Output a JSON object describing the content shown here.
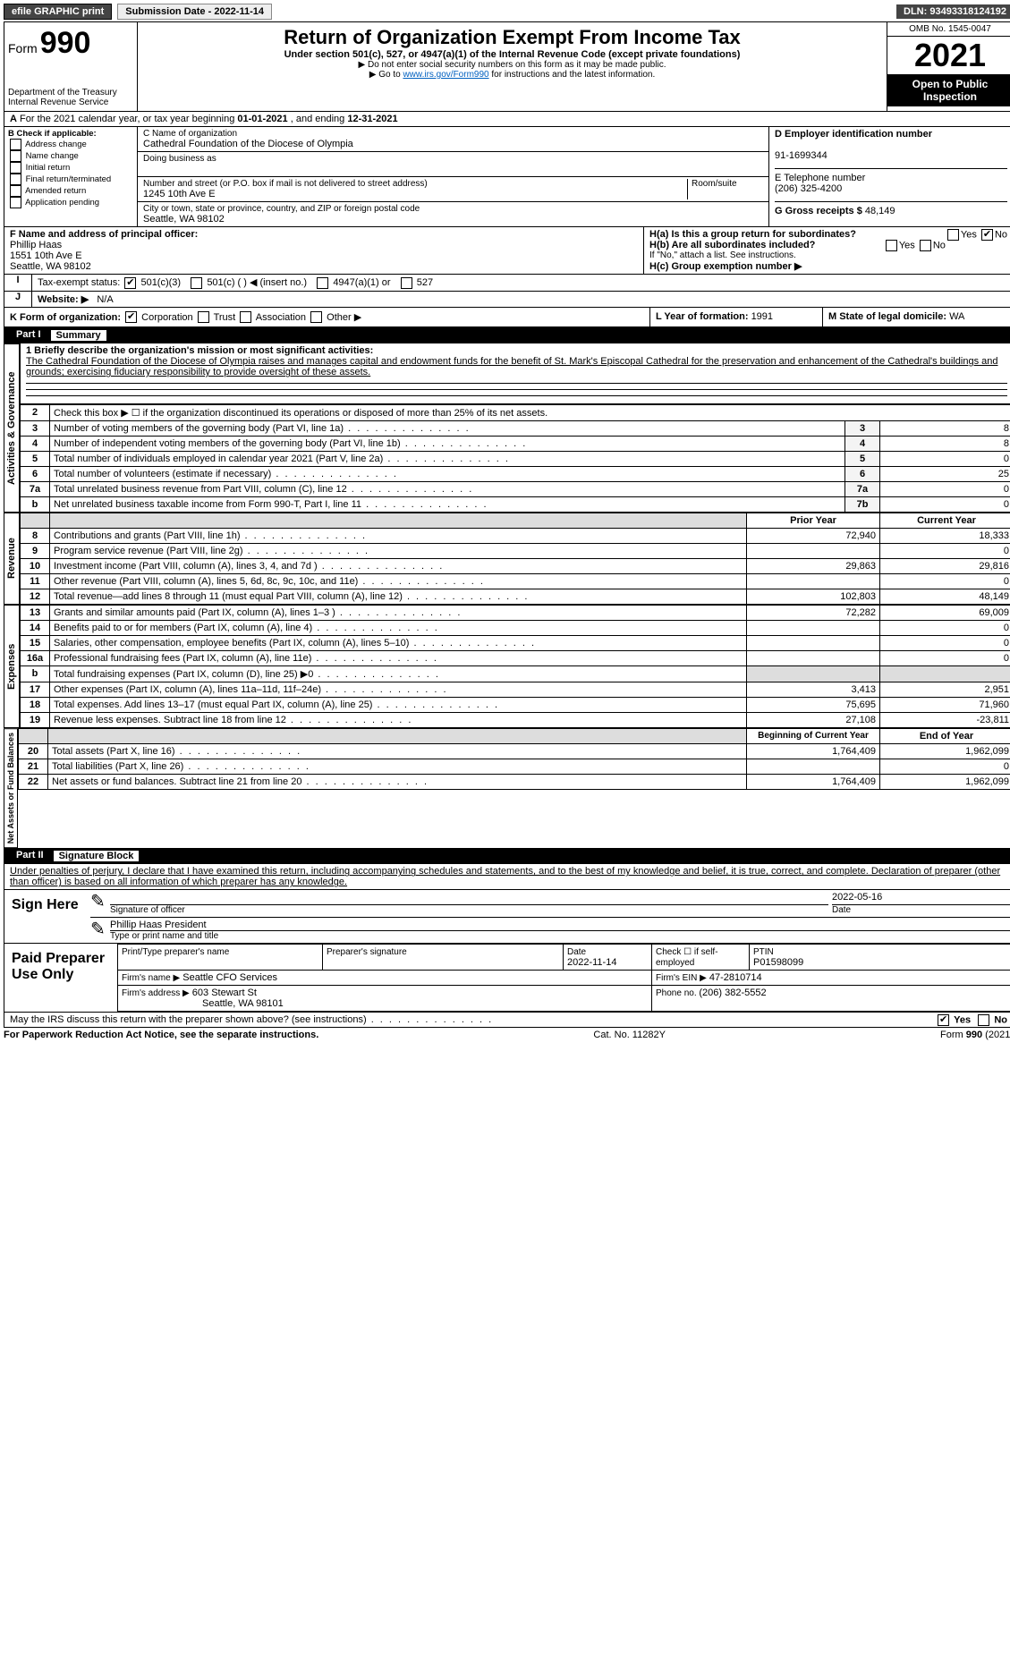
{
  "topbar": {
    "efile": "efile GRAPHIC print",
    "sub_label": "Submission Date - ",
    "sub_date": "2022-11-14",
    "dln_label": "DLN: ",
    "dln": "93493318124192"
  },
  "header": {
    "form_word": "Form",
    "form_num": "990",
    "dept1": "Department of the Treasury",
    "dept2": "Internal Revenue Service",
    "title": "Return of Organization Exempt From Income Tax",
    "sub1": "Under section 501(c), 527, or 4947(a)(1) of the Internal Revenue Code (except private foundations)",
    "sub2": "▶ Do not enter social security numbers on this form as it may be made public.",
    "sub3_pre": "▶ Go to ",
    "sub3_link": "www.irs.gov/Form990",
    "sub3_post": " for instructions and the latest information.",
    "omb": "OMB No. 1545-0047",
    "year": "2021",
    "otp": "Open to Public Inspection"
  },
  "periodA": {
    "text_pre": "For the 2021 calendar year, or tax year beginning ",
    "begin": "01-01-2021",
    "mid": " , and ending ",
    "end": "12-31-2021"
  },
  "boxB": {
    "label": "B Check if applicable:",
    "items": [
      "Address change",
      "Name change",
      "Initial return",
      "Final return/terminated",
      "Amended return",
      "Application pending"
    ]
  },
  "boxC": {
    "name_label": "C Name of organization",
    "name": "Cathedral Foundation of the Diocese of Olympia",
    "dba_label": "Doing business as",
    "addr_label": "Number and street (or P.O. box if mail is not delivered to street address)",
    "room_label": "Room/suite",
    "addr": "1245 10th Ave E",
    "city_label": "City or town, state or province, country, and ZIP or foreign postal code",
    "city": "Seattle, WA  98102"
  },
  "boxD": {
    "label": "D Employer identification number",
    "val": "91-1699344"
  },
  "boxE": {
    "label": "E Telephone number",
    "val": "(206) 325-4200"
  },
  "boxG": {
    "label": "G Gross receipts $ ",
    "val": "48,149"
  },
  "boxF": {
    "label": "F  Name and address of principal officer:",
    "name": "Phillip Haas",
    "addr": "1551 10th Ave E",
    "city": "Seattle, WA  98102"
  },
  "boxH": {
    "a": "H(a)  Is this a group return for subordinates?",
    "b": "H(b)  Are all subordinates included?",
    "b_note": "If \"No,\" attach a list. See instructions.",
    "c": "H(c)  Group exemption number ▶",
    "yes": "Yes",
    "no": "No"
  },
  "boxI": {
    "label": "Tax-exempt status:",
    "o1": "501(c)(3)",
    "o2": "501(c) (  ) ◀ (insert no.)",
    "o3": "4947(a)(1) or",
    "o4": "527"
  },
  "boxJ": {
    "label": "Website: ▶",
    "val": "N/A"
  },
  "boxK": {
    "label": "K Form of organization:",
    "o1": "Corporation",
    "o2": "Trust",
    "o3": "Association",
    "o4": "Other ▶"
  },
  "boxL": {
    "label": "L Year of formation: ",
    "val": "1991"
  },
  "boxM": {
    "label": "M State of legal domicile: ",
    "val": "WA"
  },
  "part1": {
    "num": "Part I",
    "title": "Summary"
  },
  "p1line1": {
    "label": "1 Briefly describe the organization's mission or most significant activities:",
    "text": "The Cathedral Foundation of the Diocese of Olympia raises and manages capital and endowment funds for the benefit of St. Mark's Episcopal Cathedral for the preservation and enhancement of the Cathedral's buildings and grounds; exercising fiduciary responsibility to provide oversight of these assets."
  },
  "gov_lines": [
    {
      "n": "2",
      "t": "Check this box ▶ ☐  if the organization discontinued its operations or disposed of more than 25% of its net assets.",
      "box": "",
      "v": ""
    },
    {
      "n": "3",
      "t": "Number of voting members of the governing body (Part VI, line 1a)",
      "box": "3",
      "v": "8"
    },
    {
      "n": "4",
      "t": "Number of independent voting members of the governing body (Part VI, line 1b)",
      "box": "4",
      "v": "8"
    },
    {
      "n": "5",
      "t": "Total number of individuals employed in calendar year 2021 (Part V, line 2a)",
      "box": "5",
      "v": "0"
    },
    {
      "n": "6",
      "t": "Total number of volunteers (estimate if necessary)",
      "box": "6",
      "v": "25"
    },
    {
      "n": "7a",
      "t": "Total unrelated business revenue from Part VIII, column (C), line 12",
      "box": "7a",
      "v": "0"
    },
    {
      "n": "b",
      "t": "Net unrelated business taxable income from Form 990-T, Part I, line 11",
      "box": "7b",
      "v": "0"
    }
  ],
  "col_hdr": {
    "prior": "Prior Year",
    "current": "Current Year"
  },
  "rev_lines": [
    {
      "n": "8",
      "t": "Contributions and grants (Part VIII, line 1h)",
      "p": "72,940",
      "c": "18,333"
    },
    {
      "n": "9",
      "t": "Program service revenue (Part VIII, line 2g)",
      "p": "",
      "c": "0"
    },
    {
      "n": "10",
      "t": "Investment income (Part VIII, column (A), lines 3, 4, and 7d )",
      "p": "29,863",
      "c": "29,816"
    },
    {
      "n": "11",
      "t": "Other revenue (Part VIII, column (A), lines 5, 6d, 8c, 9c, 10c, and 11e)",
      "p": "",
      "c": "0"
    },
    {
      "n": "12",
      "t": "Total revenue—add lines 8 through 11 (must equal Part VIII, column (A), line 12)",
      "p": "102,803",
      "c": "48,149"
    }
  ],
  "exp_lines": [
    {
      "n": "13",
      "t": "Grants and similar amounts paid (Part IX, column (A), lines 1–3 )",
      "p": "72,282",
      "c": "69,009"
    },
    {
      "n": "14",
      "t": "Benefits paid to or for members (Part IX, column (A), line 4)",
      "p": "",
      "c": "0"
    },
    {
      "n": "15",
      "t": "Salaries, other compensation, employee benefits (Part IX, column (A), lines 5–10)",
      "p": "",
      "c": "0"
    },
    {
      "n": "16a",
      "t": "Professional fundraising fees (Part IX, column (A), line 11e)",
      "p": "",
      "c": "0"
    },
    {
      "n": "b",
      "t": "Total fundraising expenses (Part IX, column (D), line 25) ▶0",
      "p": "shaded",
      "c": "shaded"
    },
    {
      "n": "17",
      "t": "Other expenses (Part IX, column (A), lines 11a–11d, 11f–24e)",
      "p": "3,413",
      "c": "2,951"
    },
    {
      "n": "18",
      "t": "Total expenses. Add lines 13–17 (must equal Part IX, column (A), line 25)",
      "p": "75,695",
      "c": "71,960"
    },
    {
      "n": "19",
      "t": "Revenue less expenses. Subtract line 18 from line 12",
      "p": "27,108",
      "c": "-23,811"
    }
  ],
  "na_hdr": {
    "prior": "Beginning of Current Year",
    "current": "End of Year"
  },
  "na_lines": [
    {
      "n": "20",
      "t": "Total assets (Part X, line 16)",
      "p": "1,764,409",
      "c": "1,962,099"
    },
    {
      "n": "21",
      "t": "Total liabilities (Part X, line 26)",
      "p": "",
      "c": "0"
    },
    {
      "n": "22",
      "t": "Net assets or fund balances. Subtract line 21 from line 20",
      "p": "1,764,409",
      "c": "1,962,099"
    }
  ],
  "side_labels": {
    "gov": "Activities & Governance",
    "rev": "Revenue",
    "exp": "Expenses",
    "na": "Net Assets or Fund Balances"
  },
  "part2": {
    "num": "Part II",
    "title": "Signature Block"
  },
  "jurat": "Under penalties of perjury, I declare that I have examined this return, including accompanying schedules and statements, and to the best of my knowledge and belief, it is true, correct, and complete. Declaration of preparer (other than officer) is based on all information of which preparer has any knowledge.",
  "sign": {
    "here": "Sign Here",
    "sig_label": "Signature of officer",
    "date": "2022-05-16",
    "date_label": "Date",
    "name": "Phillip Haas  President",
    "name_label": "Type or print name and title"
  },
  "paid": {
    "title": "Paid Preparer Use Only",
    "h1": "Print/Type preparer's name",
    "h2": "Preparer's signature",
    "h3": "Date",
    "h3v": "2022-11-14",
    "h4": "Check ☐ if self-employed",
    "h5": "PTIN",
    "h5v": "P01598099",
    "firm_label": "Firm's name    ▶",
    "firm": "Seattle CFO Services",
    "ein_label": "Firm's EIN ▶",
    "ein": "47-2810714",
    "addr_label": "Firm's address ▶",
    "addr1": "603 Stewart St",
    "addr2": "Seattle, WA  98101",
    "phone_label": "Phone no. ",
    "phone": "(206) 382-5552"
  },
  "may_irs": "May the IRS discuss this return with the preparer shown above? (see instructions)",
  "footer": {
    "l": "For Paperwork Reduction Act Notice, see the separate instructions.",
    "m": "Cat. No. 11282Y",
    "r": "Form 990 (2021)"
  }
}
